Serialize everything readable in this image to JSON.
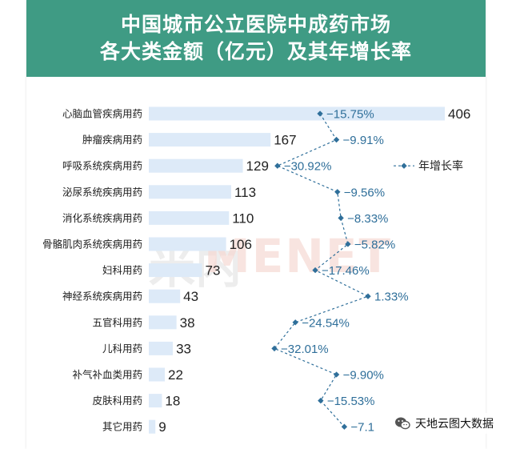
{
  "header": {
    "title_line1": "中国城市公立医院中成药市场",
    "title_line2": "各大类金额（亿元）及其年增长率"
  },
  "watermark": "MENET",
  "brand": {
    "name": "天地云图大数据",
    "icon": "wechat-icon"
  },
  "colors": {
    "header_bg": "#3f9b84",
    "bar": "#ddeaf8",
    "rate_line": "#2f6f9a"
  },
  "chart_data": {
    "type": "bar",
    "orientation": "horizontal",
    "categories": [
      "心脑血管疾病用药",
      "肿瘤疾病用药",
      "呼吸系统疾病用药",
      "泌尿系统疾病用药",
      "消化系统疾病用药",
      "骨骼肌肉系统疾病用药",
      "妇科用药",
      "神经系统疾病用药",
      "五官科用药",
      "儿科用药",
      "补气补血类用药",
      "皮肤科用药",
      "其它用药"
    ],
    "values": [
      406,
      167,
      129,
      113,
      110,
      106,
      73,
      43,
      38,
      33,
      22,
      18,
      9
    ],
    "value_labels": [
      "406",
      "167",
      "129",
      "113",
      "110",
      "106",
      "73",
      "43",
      "38",
      "33",
      "22",
      "18",
      "9"
    ],
    "growth_rate": [
      -15.75,
      -9.91,
      -30.92,
      -9.56,
      -8.33,
      -5.82,
      -17.46,
      1.33,
      -24.54,
      -32.01,
      -9.9,
      -15.53,
      -7.1
    ],
    "growth_labels": [
      "−15.75%",
      "−9.91%",
      "−30.92%",
      "−9.56%",
      "−8.33%",
      "−5.82%",
      "−17.46%",
      "1.33%",
      "−24.54%",
      "−32.01%",
      "−9.90%",
      "−15.53%",
      "−7.1"
    ],
    "legend": "年增长率",
    "legend_position": "right",
    "xlim": [
      0,
      406
    ],
    "grid": false
  }
}
